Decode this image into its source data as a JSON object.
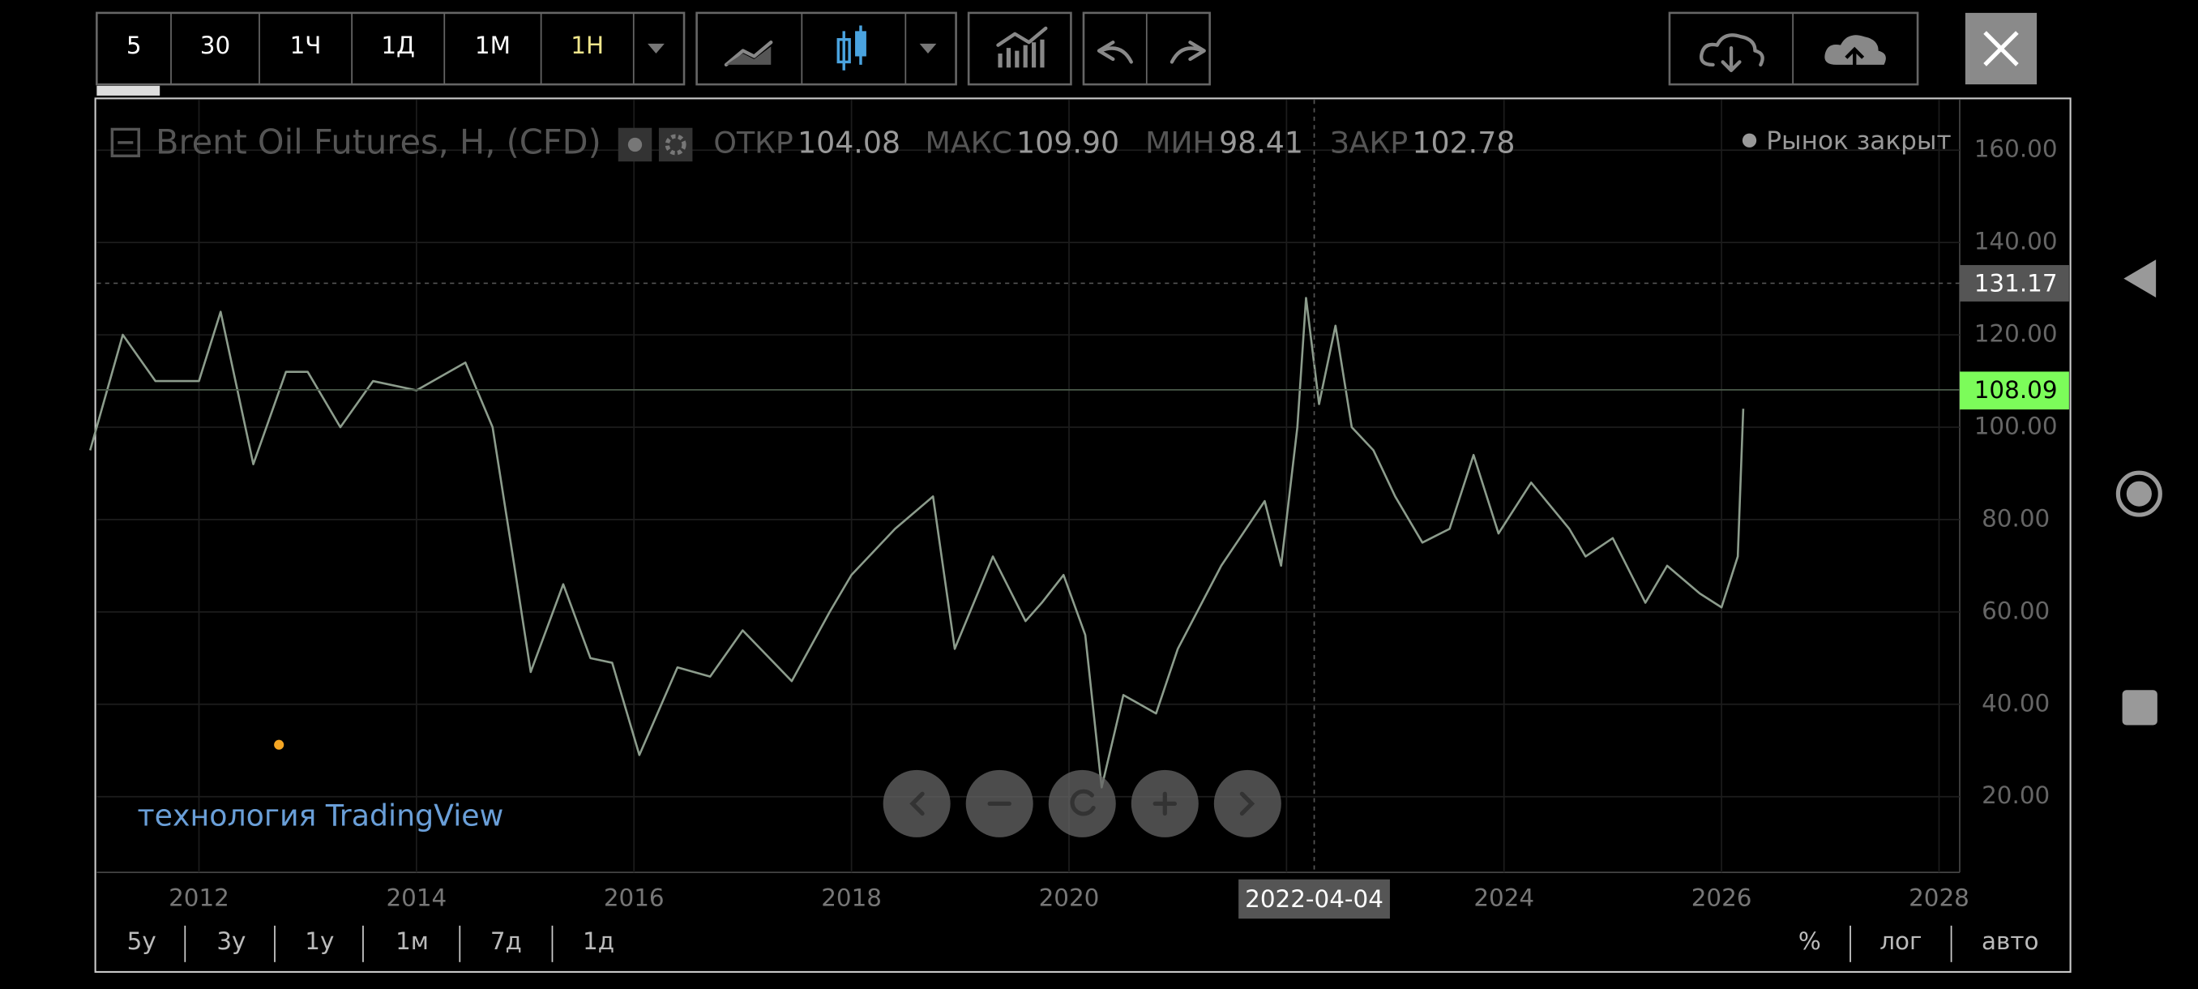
{
  "toolbar": {
    "intervals": [
      "5",
      "30",
      "1Ч",
      "1Д",
      "1М",
      "1Н"
    ]
  },
  "chart_data": {
    "type": "line",
    "title": "Brent Oil Futures, H, (CFD)",
    "ohlc": [
      {
        "label": "ОТКР",
        "value": "104.08"
      },
      {
        "label": "МАКС",
        "value": "109.90"
      },
      {
        "label": "МИН",
        "value": "98.41"
      },
      {
        "label": "ЗАКР",
        "value": "102.78"
      }
    ],
    "market_status": "Рынок закрыт",
    "watermark": "технология TradingView",
    "color": "#8c9c8c",
    "x": [
      2011.0,
      2011.3,
      2011.6,
      2012.0,
      2012.2,
      2012.5,
      2012.8,
      2013.0,
      2013.3,
      2013.6,
      2014.0,
      2014.45,
      2014.7,
      2014.9,
      2015.05,
      2015.35,
      2015.6,
      2015.8,
      2016.05,
      2016.4,
      2016.7,
      2017.0,
      2017.45,
      2017.8,
      2018.0,
      2018.4,
      2018.75,
      2018.95,
      2019.3,
      2019.6,
      2019.75,
      2019.95,
      2020.15,
      2020.3,
      2020.5,
      2020.8,
      2021.0,
      2021.4,
      2021.8,
      2021.95,
      2022.1,
      2022.18,
      2022.3,
      2022.45,
      2022.6,
      2022.8,
      2023.0,
      2023.25,
      2023.5,
      2023.72,
      2023.95,
      2024.25,
      2024.6,
      2024.75,
      2025.0,
      2025.3,
      2025.5,
      2025.8,
      2026.0,
      2026.15,
      2026.2
    ],
    "values": [
      95,
      120,
      110,
      110,
      125,
      92,
      112,
      112,
      100,
      110,
      108,
      114,
      100,
      70,
      47,
      66,
      50,
      49,
      29,
      48,
      46,
      56,
      45,
      60,
      68,
      78,
      85,
      52,
      72,
      58,
      62,
      68,
      55,
      22,
      42,
      38,
      52,
      70,
      84,
      70,
      100,
      128,
      105,
      122,
      100,
      95,
      85,
      75,
      78,
      94,
      77,
      88,
      78,
      72,
      76,
      62,
      70,
      64,
      61,
      72,
      104
    ],
    "crosshair": {
      "price": 131.17,
      "date": "2022-04-04"
    },
    "last_price": 108.09,
    "last_price_color": "#7cfc5a",
    "xlim": [
      2011.06,
      2028.19
    ],
    "ylim": [
      3.6,
      170.9
    ],
    "xticks": [
      2012,
      2014,
      2016,
      2018,
      2020,
      2022,
      2024,
      2026,
      2028
    ],
    "yticks": [
      {
        "value": 20,
        "label": "20.00"
      },
      {
        "value": 40,
        "label": "40.00"
      },
      {
        "value": 60,
        "label": "60.00"
      },
      {
        "value": 80,
        "label": "80.00"
      },
      {
        "value": 100,
        "label": "100.00"
      },
      {
        "value": 120,
        "label": "120.00"
      },
      {
        "value": 140,
        "label": "140.00"
      },
      {
        "value": 160,
        "label": "160.00"
      }
    ],
    "grid": true
  },
  "range_buttons": [
    "5у",
    "3у",
    "1у",
    "1м",
    "7д",
    "1д"
  ],
  "scale_buttons": [
    "%",
    "лог",
    "авто"
  ]
}
